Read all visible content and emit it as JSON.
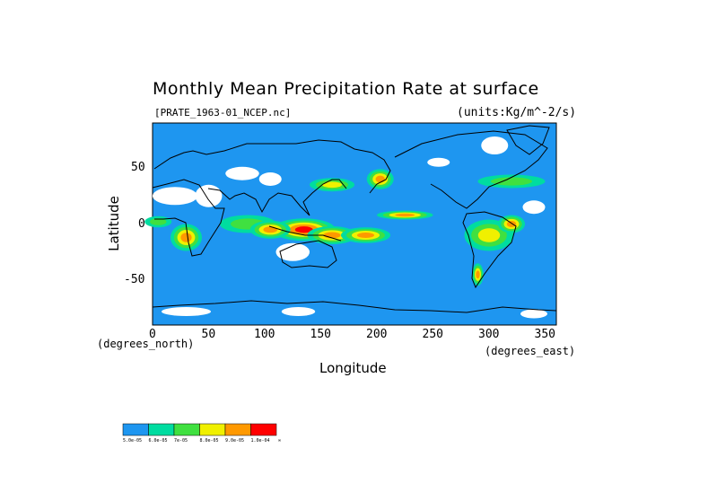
{
  "title": "Monthly Mean Precipitation Rate at surface",
  "file_label": "[PRATE_1963-01_NCEP.nc]",
  "units_label": "(units:Kg/m^-2/s)",
  "chart_data": {
    "type": "heatmap",
    "title": "Monthly Mean Precipitation Rate at surface",
    "xlabel": "Longitude",
    "ylabel": "Latitude",
    "x_unit_label": "(degrees_east)",
    "y_unit_label": "(degrees_north)",
    "xlim": [
      0,
      360
    ],
    "ylim": [
      -90,
      90
    ],
    "x_ticks": [
      0,
      50,
      100,
      150,
      200,
      250,
      300,
      350
    ],
    "y_ticks": [
      50,
      0,
      -50
    ],
    "colorbar": {
      "labels": [
        "5.0e-05",
        "6.0e-05",
        "7e-05",
        "8.0e-05",
        "9.0e-05",
        "1.0e-04",
        "∞"
      ],
      "colors": [
        "#1e96f0",
        "#00dca0",
        "#40e040",
        "#f0f000",
        "#ff9900",
        "#ff0000"
      ]
    },
    "missing_color": "#ffffff",
    "precip_regions": [
      {
        "lon": 135,
        "lat": -5,
        "rx": 28,
        "ry": 10,
        "level": 5
      },
      {
        "lon": 160,
        "lat": -10,
        "rx": 22,
        "ry": 8,
        "level": 4
      },
      {
        "lon": 190,
        "lat": -10,
        "rx": 22,
        "ry": 7,
        "level": 4
      },
      {
        "lon": 225,
        "lat": 8,
        "rx": 25,
        "ry": 4,
        "level": 4
      },
      {
        "lon": 160,
        "lat": 35,
        "rx": 20,
        "ry": 6,
        "level": 3
      },
      {
        "lon": 203,
        "lat": 40,
        "rx": 12,
        "ry": 9,
        "level": 4
      },
      {
        "lon": 30,
        "lat": -12,
        "rx": 14,
        "ry": 12,
        "level": 4
      },
      {
        "lon": 300,
        "lat": -10,
        "rx": 22,
        "ry": 14,
        "level": 3
      },
      {
        "lon": 320,
        "lat": 0,
        "rx": 12,
        "ry": 8,
        "level": 4
      },
      {
        "lon": 290,
        "lat": -45,
        "rx": 5,
        "ry": 10,
        "level": 4
      },
      {
        "lon": 85,
        "lat": 0,
        "rx": 25,
        "ry": 8,
        "level": 2
      },
      {
        "lon": 105,
        "lat": -5,
        "rx": 18,
        "ry": 8,
        "level": 4
      },
      {
        "lon": 320,
        "lat": 38,
        "rx": 30,
        "ry": 6,
        "level": 2
      },
      {
        "lon": 5,
        "lat": 2,
        "rx": 12,
        "ry": 5,
        "level": 2
      }
    ],
    "missing_regions": [
      {
        "lon": 20,
        "lat": 25,
        "rx": 20,
        "ry": 8
      },
      {
        "lon": 50,
        "lat": 25,
        "rx": 12,
        "ry": 10
      },
      {
        "lon": 80,
        "lat": 45,
        "rx": 15,
        "ry": 6
      },
      {
        "lon": 105,
        "lat": 40,
        "rx": 10,
        "ry": 6
      },
      {
        "lon": 125,
        "lat": -25,
        "rx": 15,
        "ry": 8
      },
      {
        "lon": 255,
        "lat": 55,
        "rx": 10,
        "ry": 4
      },
      {
        "lon": 305,
        "lat": 70,
        "rx": 12,
        "ry": 8
      },
      {
        "lon": 340,
        "lat": 15,
        "rx": 10,
        "ry": 6
      },
      {
        "lon": 30,
        "lat": -78,
        "rx": 22,
        "ry": 4
      },
      {
        "lon": 130,
        "lat": -78,
        "rx": 15,
        "ry": 4
      },
      {
        "lon": 340,
        "lat": -80,
        "rx": 12,
        "ry": 4
      }
    ]
  }
}
